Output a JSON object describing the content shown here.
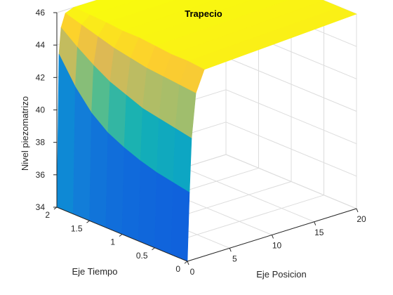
{
  "chart_data": {
    "type": "surface",
    "title": "Trapecio",
    "xlabel": "Eje Posicion",
    "ylabel": "Eje Tiempo",
    "zlabel": "Nivel piezomatrizo",
    "x_ticks": [
      "0",
      "5",
      "10",
      "15",
      "20"
    ],
    "y_ticks": [
      "0",
      "0.5",
      "1",
      "1.5",
      "2"
    ],
    "z_ticks": [
      "34",
      "36",
      "38",
      "40",
      "42",
      "44",
      "46"
    ],
    "xlim": [
      0,
      20
    ],
    "ylim": [
      0,
      2
    ],
    "zlim": [
      34,
      46
    ],
    "grid": true,
    "colormap": "parula",
    "surface": {
      "x": [
        0,
        0.25,
        0.5,
        1,
        2,
        20
      ],
      "t": [
        0,
        0.25,
        0.5,
        0.75,
        1,
        1.25,
        1.5,
        1.75,
        2
      ],
      "z": [
        [
          34,
          34,
          34,
          34,
          34,
          34,
          34,
          34,
          34
        ],
        [
          38.2,
          38.4,
          38.6,
          38.9,
          39.3,
          39.8,
          40.6,
          41.8,
          43.4
        ],
        [
          41.5,
          41.7,
          41.9,
          42.1,
          42.5,
          42.9,
          43.5,
          44.2,
          45
        ],
        [
          44.2,
          44.3,
          44.4,
          44.5,
          44.7,
          44.9,
          45.2,
          45.5,
          45.8
        ],
        [
          45.5,
          45.6,
          45.6,
          45.7,
          45.8,
          45.8,
          45.9,
          45.95,
          46
        ],
        [
          46,
          46,
          46,
          46,
          46,
          46,
          46,
          46,
          46
        ]
      ]
    },
    "colors": {
      "low": "#352a87",
      "mid": "#21b9a2",
      "high": "#f9fb0e",
      "background": "#ffffff"
    }
  }
}
